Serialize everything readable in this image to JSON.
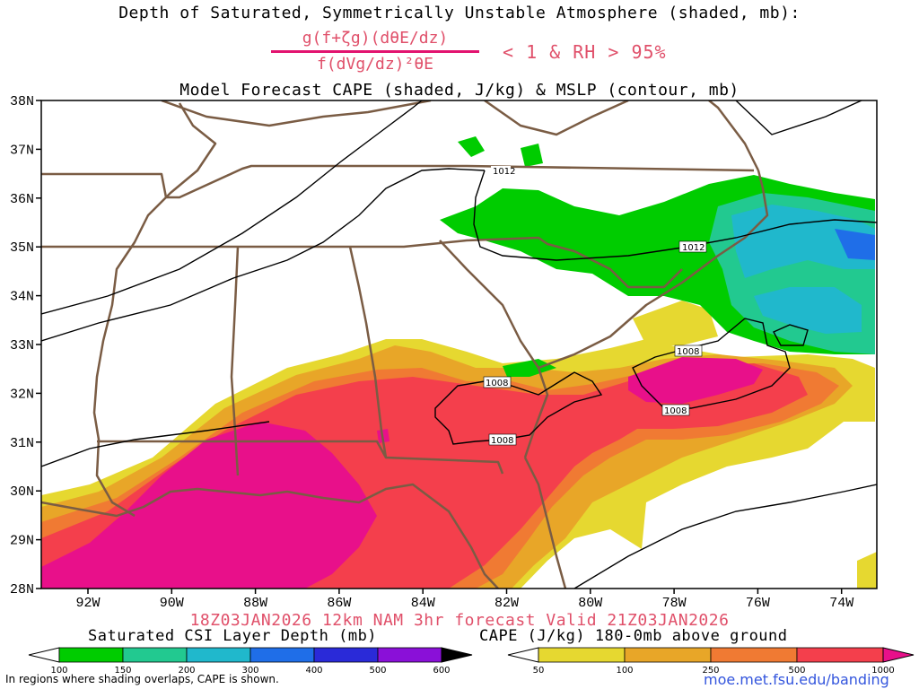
{
  "title_line1": "Depth of Saturated, Symmetrically Unstable Atmosphere (shaded, mb):",
  "formula": {
    "numerator": "g(f+ζg)(dθE/dz)",
    "denominator": "f(dVg/dz)²θE",
    "condition": "< 1 & RH > 95%"
  },
  "title_line3": "Model Forecast CAPE (shaded, J/kg) & MSLP (contour, mb)",
  "valid_line": "18Z03JAN2026 12km NAM 3hr forecast Valid 21Z03JAN2026",
  "lat_labels": [
    "38N",
    "37N",
    "36N",
    "35N",
    "34N",
    "33N",
    "32N",
    "31N",
    "30N",
    "29N",
    "28N"
  ],
  "lon_labels": [
    "92W",
    "90W",
    "88W",
    "86W",
    "84W",
    "82W",
    "80W",
    "78W",
    "76W",
    "74W"
  ],
  "isobars": [
    {
      "value": "1012",
      "label": "1012"
    },
    {
      "value": "1008",
      "label": "1008"
    }
  ],
  "csi_colorbar": {
    "title": "Saturated CSI Layer Depth (mb)",
    "ticks": [
      "100",
      "150",
      "200",
      "300",
      "400",
      "500",
      "600"
    ],
    "colors": [
      "#ffffff",
      "#00cc00",
      "#22c990",
      "#20b8cc",
      "#1f6ee8",
      "#2a2ad8",
      "#8a10d8",
      "#000000"
    ]
  },
  "cape_colorbar": {
    "title": "CAPE (J/kg) 180-0mb above ground",
    "ticks": [
      "50",
      "100",
      "250",
      "500",
      "1000"
    ],
    "colors": [
      "#ffffff",
      "#e6d830",
      "#e8a628",
      "#f07a33",
      "#f43f4c",
      "#e8108a"
    ]
  },
  "footnote": "In regions where shading overlaps, CAPE is shown.",
  "url": "moe.met.fsu.edu/banding"
}
